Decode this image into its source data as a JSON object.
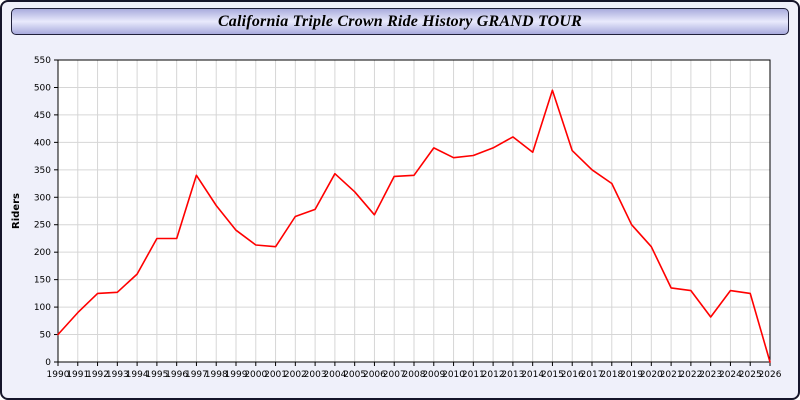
{
  "window": {
    "title": "California Triple Crown Ride History GRAND TOUR"
  },
  "colors": {
    "line": "#ff0000",
    "grid": "#d6d6d6",
    "plot_background": "#ffffff",
    "plot_border": "#000000",
    "panel_background": "#eff0fa",
    "title_gradient_edge": "#a9abdd",
    "title_gradient_center": "#e9eafc"
  },
  "chart_data": {
    "type": "line",
    "title": "California Triple Crown Ride History GRAND TOUR",
    "xlabel": "",
    "ylabel": "Riders",
    "ylim": [
      0,
      550
    ],
    "ytick_step": 50,
    "grid": true,
    "legend": "none",
    "x": [
      1990,
      1991,
      1992,
      1993,
      1994,
      1995,
      1996,
      1997,
      1998,
      1999,
      2000,
      2001,
      2002,
      2003,
      2004,
      2005,
      2006,
      2007,
      2008,
      2009,
      2010,
      2011,
      2012,
      2013,
      2014,
      2015,
      2016,
      2017,
      2018,
      2019,
      2020,
      2021,
      2022,
      2023,
      2024,
      2025,
      2026
    ],
    "series": [
      {
        "name": "Riders",
        "color": "#ff0000",
        "values": [
          50,
          90,
          125,
          127,
          160,
          225,
          225,
          340,
          285,
          240,
          213,
          210,
          265,
          278,
          343,
          310,
          268,
          338,
          340,
          390,
          372,
          376,
          390,
          410,
          382,
          495,
          385,
          350,
          325,
          250,
          210,
          135,
          130,
          82,
          130,
          125,
          0
        ]
      }
    ]
  }
}
